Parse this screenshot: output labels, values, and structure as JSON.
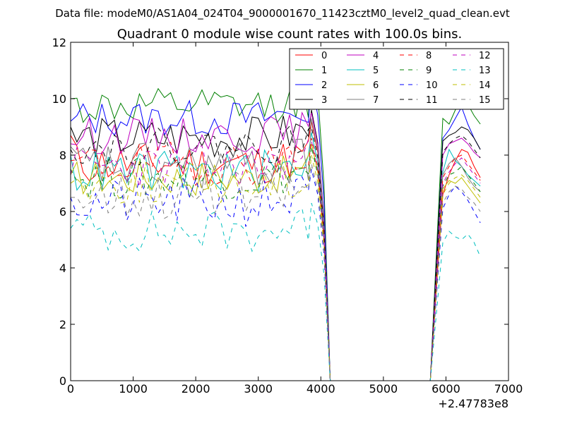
{
  "figure": {
    "suptitle": "Data file: modeM0/AS1A04_024T04_9000001670_11423cztM0_level2_quad_clean.evt"
  },
  "chart_data": {
    "type": "line",
    "title": "Quadrant 0 module wise count rates with 100.0s bins.",
    "xlabel": "",
    "ylabel": "",
    "x_offset_label": "+2.47783e8",
    "xlim": [
      0,
      7000
    ],
    "ylim": [
      0,
      12
    ],
    "xticks": [
      0,
      1000,
      2000,
      3000,
      4000,
      5000,
      6000,
      7000
    ],
    "yticks": [
      0,
      2,
      4,
      6,
      8,
      10,
      12
    ],
    "grid": false,
    "legend_position": "top-right",
    "legend_columns": 4,
    "gap_range": [
      4150,
      5750
    ],
    "gap_value": 0,
    "series": [
      {
        "name": "0",
        "color": "#ff0000",
        "dash": "solid",
        "start_level": 8.7,
        "mean": 7.7,
        "var": 0.35,
        "peak": 9.2,
        "resume": [
          6.6,
          7.3,
          7.8,
          8.2,
          8.1,
          7.6,
          7.2
        ],
        "seed": 11
      },
      {
        "name": "1",
        "color": "#008000",
        "dash": "solid",
        "start_level": 10.0,
        "mean": 9.7,
        "var": 0.3,
        "peak": 11.6,
        "resume": [
          9.3,
          9.1,
          9.6,
          9.9,
          9.8,
          9.4,
          9.1
        ],
        "seed": 12
      },
      {
        "name": "2",
        "color": "#0000ff",
        "dash": "solid",
        "start_level": 9.2,
        "mean": 9.3,
        "var": 0.3,
        "peak": 10.7,
        "resume": [
          8.6,
          8.9,
          9.3,
          9.7,
          9.1,
          8.6,
          8.2
        ],
        "seed": 13
      },
      {
        "name": "3",
        "color": "#000000",
        "dash": "solid",
        "start_level": 9.0,
        "mean": 8.6,
        "var": 0.35,
        "peak": 9.6,
        "resume": [
          8.5,
          8.7,
          8.8,
          9.0,
          8.9,
          8.6,
          8.2
        ],
        "seed": 14
      },
      {
        "name": "4",
        "color": "#bf00bf",
        "dash": "solid",
        "start_level": 8.4,
        "mean": 8.7,
        "var": 0.3,
        "peak": 9.5,
        "resume": [
          8.0,
          8.4,
          8.5,
          8.6,
          8.4,
          8.1,
          7.9
        ],
        "seed": 15
      },
      {
        "name": "5",
        "color": "#00bfbf",
        "dash": "solid",
        "start_level": 8.0,
        "mean": 7.4,
        "var": 0.35,
        "peak": 8.8,
        "resume": [
          7.4,
          8.2,
          7.8,
          7.6,
          7.3,
          7.1,
          6.9
        ],
        "seed": 16
      },
      {
        "name": "6",
        "color": "#bfbf00",
        "dash": "solid",
        "start_level": 7.3,
        "mean": 7.2,
        "var": 0.3,
        "peak": 8.4,
        "resume": [
          6.8,
          7.1,
          7.0,
          7.2,
          6.9,
          6.6,
          6.3
        ],
        "seed": 17
      },
      {
        "name": "7",
        "color": "#808080",
        "dash": "solid",
        "start_level": 8.3,
        "mean": 7.6,
        "var": 0.4,
        "peak": 9.3,
        "resume": [
          7.3,
          7.7,
          7.9,
          7.6,
          7.2,
          6.9,
          6.7
        ],
        "seed": 18
      },
      {
        "name": "8",
        "color": "#ff0000",
        "dash": "dashed",
        "start_level": 7.8,
        "mean": 7.7,
        "var": 0.35,
        "peak": 8.6,
        "resume": [
          7.2,
          7.6,
          7.9,
          8.0,
          7.7,
          7.4,
          7.1
        ],
        "seed": 19
      },
      {
        "name": "9",
        "color": "#008000",
        "dash": "dashed",
        "start_level": 7.5,
        "mean": 7.2,
        "var": 0.35,
        "peak": 8.3,
        "resume": [
          6.9,
          7.3,
          7.4,
          7.6,
          7.3,
          7.0,
          6.7
        ],
        "seed": 20
      },
      {
        "name": "10",
        "color": "#0000ff",
        "dash": "dashed",
        "start_level": 6.5,
        "mean": 6.3,
        "var": 0.4,
        "peak": 7.5,
        "resume": [
          6.1,
          6.6,
          6.9,
          6.7,
          6.4,
          6.0,
          5.6
        ],
        "seed": 21
      },
      {
        "name": "11",
        "color": "#000000",
        "dash": "dashed",
        "start_level": 8.2,
        "mean": 8.3,
        "var": 0.3,
        "peak": 9.0,
        "resume": [
          8.1,
          8.4,
          8.6,
          8.7,
          8.5,
          8.2,
          7.9
        ],
        "seed": 22
      },
      {
        "name": "12",
        "color": "#bf00bf",
        "dash": "dashed",
        "start_level": 7.3,
        "mean": 7.6,
        "var": 0.35,
        "peak": 8.5,
        "resume": [
          7.0,
          7.4,
          7.7,
          7.9,
          7.6,
          7.3,
          7.0
        ],
        "seed": 23
      },
      {
        "name": "13",
        "color": "#00bfbf",
        "dash": "dashed",
        "start_level": 5.4,
        "mean": 5.3,
        "var": 0.35,
        "peak": 6.3,
        "resume": [
          4.9,
          5.3,
          5.1,
          5.0,
          5.2,
          4.9,
          4.4
        ],
        "seed": 24
      },
      {
        "name": "14",
        "color": "#bfbf00",
        "dash": "dashed",
        "start_level": 7.0,
        "mean": 7.0,
        "var": 0.35,
        "peak": 8.0,
        "resume": [
          6.6,
          7.0,
          7.2,
          7.3,
          7.1,
          6.8,
          6.5
        ],
        "seed": 25
      },
      {
        "name": "15",
        "color": "#808080",
        "dash": "dashed",
        "start_level": 6.5,
        "mean": 6.6,
        "var": 0.4,
        "peak": 7.7,
        "resume": [
          6.3,
          6.7,
          6.9,
          6.8,
          6.5,
          6.3,
          6.0
        ],
        "seed": 26
      }
    ]
  }
}
